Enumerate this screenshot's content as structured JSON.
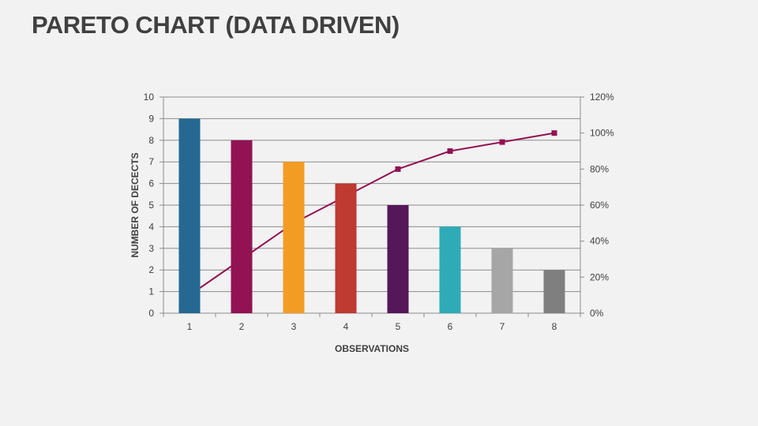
{
  "title": "PARETO CHART (DATA DRIVEN)",
  "chart_data": {
    "type": "bar+line",
    "categories": [
      "1",
      "2",
      "3",
      "4",
      "5",
      "6",
      "7",
      "8"
    ],
    "series": [
      {
        "type": "bar",
        "axis": "left",
        "values": [
          9,
          8,
          7,
          6,
          5,
          4,
          3,
          2
        ],
        "colors": [
          "#256891",
          "#921254",
          "#f39c24",
          "#bf3a30",
          "#561758",
          "#2fabb8",
          "#a6a6a6",
          "#7f7f7f"
        ]
      },
      {
        "type": "line",
        "axis": "right",
        "values": [
          10,
          30,
          50,
          65,
          80,
          90,
          95,
          100
        ],
        "color": "#921254",
        "marker": "square"
      }
    ],
    "xlabel": "OBSERVATIONS",
    "ylabel": "NUMBER OF DECECTS",
    "ylim": [
      0,
      10
    ],
    "y2lim": [
      0,
      120
    ],
    "yticks": [
      "0",
      "1",
      "2",
      "3",
      "4",
      "5",
      "6",
      "7",
      "8",
      "9",
      "10"
    ],
    "y2ticks": [
      "0%",
      "20%",
      "40%",
      "60%",
      "80%",
      "100%",
      "120%"
    ],
    "grid": true
  }
}
